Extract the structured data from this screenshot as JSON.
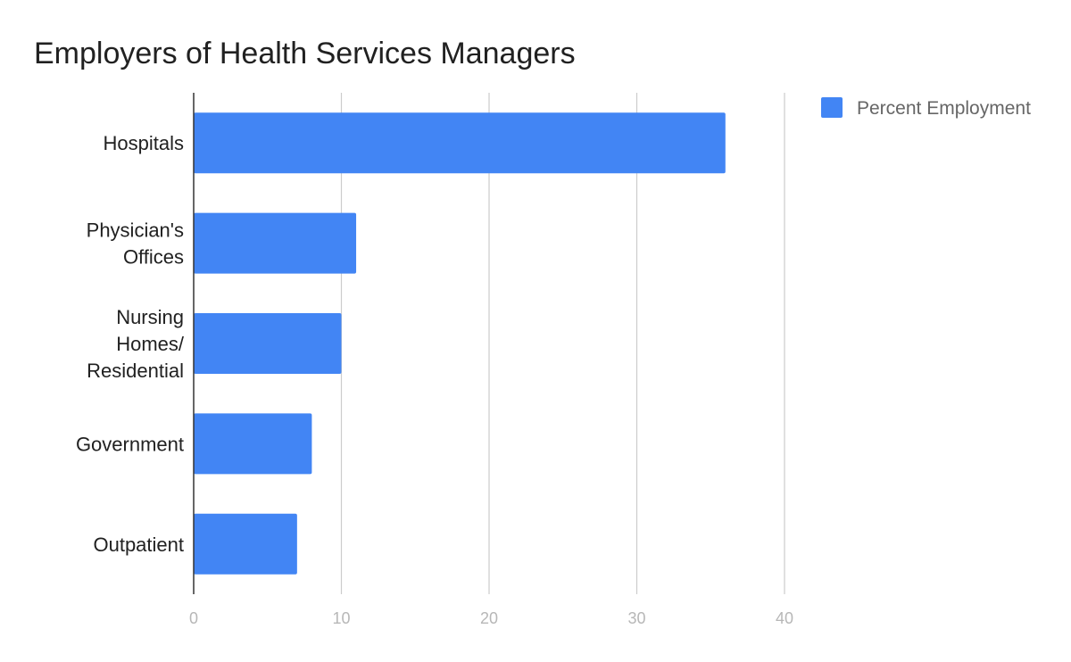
{
  "chart_data": {
    "type": "bar",
    "orientation": "horizontal",
    "title": "Employers of Health Services Managers",
    "xlabel": "",
    "ylabel": "",
    "categories": [
      [
        "Hospitals"
      ],
      [
        "Physician's",
        "Offices"
      ],
      [
        "Nursing",
        "Homes/",
        "Residential"
      ],
      [
        "Government"
      ],
      [
        "Outpatient"
      ]
    ],
    "series": [
      {
        "name": "Percent Employment",
        "color": "#4285f4",
        "values": [
          36,
          11,
          10,
          8,
          7
        ]
      }
    ],
    "xlim": [
      0,
      40
    ],
    "x_ticks": [
      0,
      10,
      20,
      30,
      40
    ],
    "grid": true,
    "legend_position": "top-right",
    "colors": {
      "bar": "#4285f4",
      "grid": "#cccccc",
      "axis": "#333333",
      "title": "#212121",
      "category_text": "#212121",
      "tick_text": "#b7b7b7",
      "legend_text": "#666666"
    }
  }
}
